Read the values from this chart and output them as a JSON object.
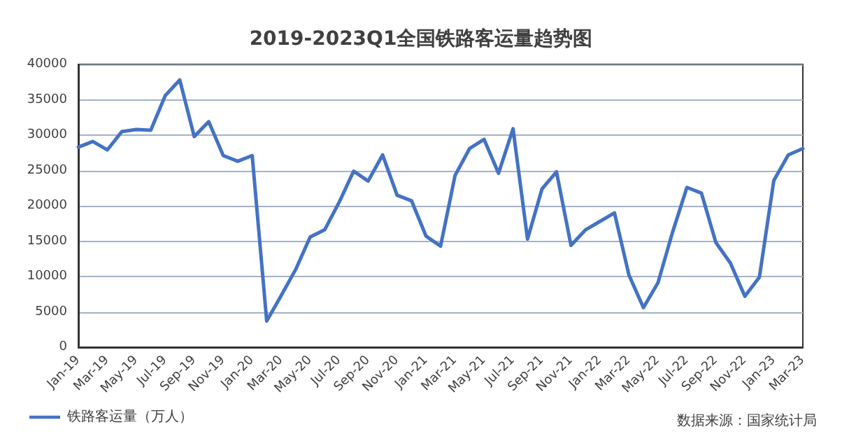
{
  "chart_data": {
    "type": "line",
    "title": "2019-2023Q1全国铁路客运量趋势图",
    "categories": [
      "Jan-19",
      null,
      "Mar-19",
      null,
      "May-19",
      null,
      "Jul-19",
      null,
      "Sep-19",
      null,
      "Nov-19",
      null,
      "Jan-20",
      null,
      "Mar-20",
      null,
      "May-20",
      null,
      "Jul-20",
      null,
      "Sep-20",
      null,
      "Nov-20",
      null,
      "Jan-21",
      null,
      "Mar-21",
      null,
      "May-21",
      null,
      "Jul-21",
      null,
      "Sep-21",
      null,
      "Nov-21",
      null,
      "Jan-22",
      null,
      "Mar-22",
      null,
      "May-22",
      null,
      "Jul-22",
      null,
      "Sep-22",
      null,
      "Nov-22",
      null,
      "Jan-23",
      null,
      "Mar-23"
    ],
    "series": [
      {
        "name": "铁路客运量（万人）",
        "color": "#4472c4",
        "values": [
          28300,
          29100,
          27900,
          30500,
          30800,
          30700,
          35600,
          37800,
          29800,
          31900,
          27100,
          26300,
          27100,
          3700,
          7300,
          11000,
          15600,
          16600,
          20500,
          24900,
          23500,
          27200,
          21500,
          20700,
          15700,
          14300,
          24300,
          28100,
          29400,
          24600,
          30900,
          15300,
          22400,
          24800,
          14400,
          16600,
          17800,
          19000,
          10200,
          5600,
          9100,
          16200,
          22600,
          21800,
          14800,
          11900,
          7200,
          9900,
          23600,
          27200,
          28100
        ]
      }
    ],
    "ylim": [
      0,
      40000
    ],
    "yticks": [
      0,
      5000,
      10000,
      15000,
      20000,
      25000,
      30000,
      35000,
      40000
    ],
    "grid": "y",
    "legend": "bottom left",
    "marker": "none",
    "line_style": "solid",
    "annotations": [
      "数据来源：国家统计局"
    ]
  }
}
